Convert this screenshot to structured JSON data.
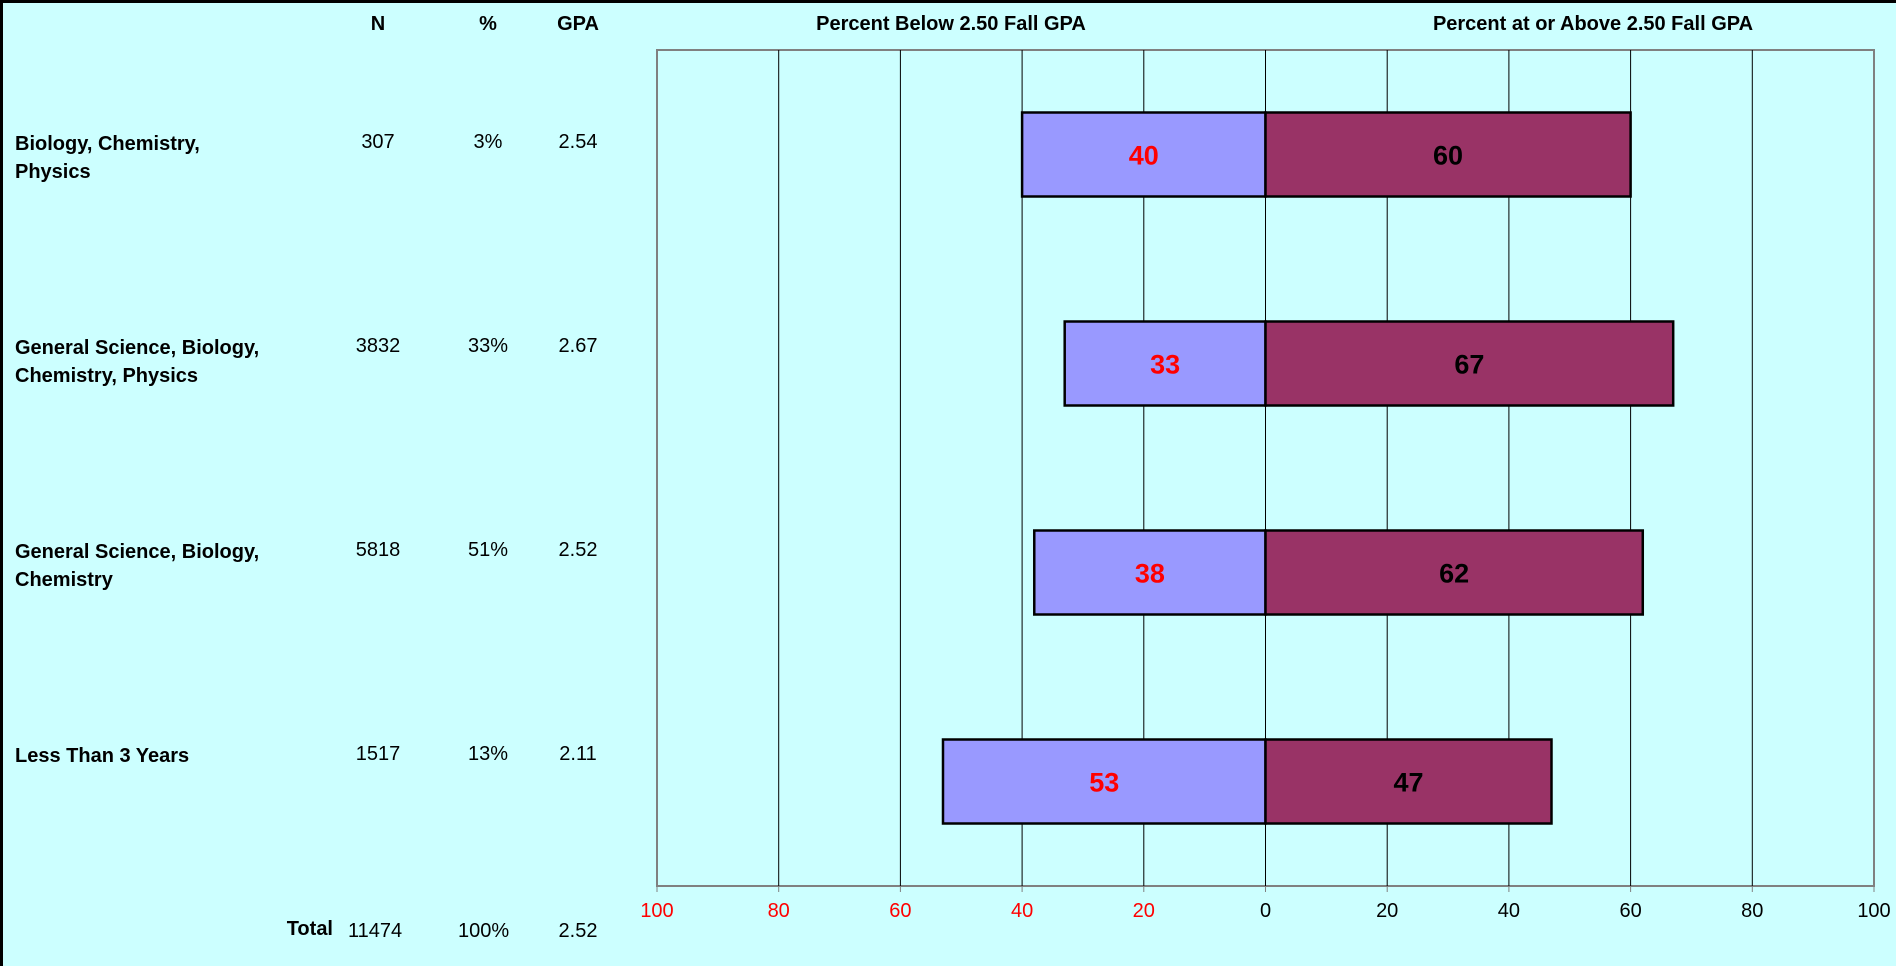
{
  "table": {
    "headers": {
      "n": "N",
      "pct": "%",
      "gpa": "GPA"
    },
    "rows": [
      {
        "label": "Biology, Chemistry,\nPhysics",
        "n": "307",
        "pct": "3%",
        "gpa": "2.54"
      },
      {
        "label": "General Science, Biology,\nChemistry, Physics",
        "n": "3832",
        "pct": "33%",
        "gpa": "2.67"
      },
      {
        "label": "General Science, Biology,\nChemistry",
        "n": "5818",
        "pct": "51%",
        "gpa": "2.52"
      },
      {
        "label": "Less Than 3 Years",
        "n": "1517",
        "pct": "13%",
        "gpa": "2.11"
      }
    ],
    "total": {
      "label": "Total",
      "n": "11474",
      "pct": "100%",
      "gpa": "2.52"
    }
  },
  "chart_data": {
    "type": "bar",
    "orientation": "horizontal-diverging",
    "left_title": "Percent Below 2.50 Fall GPA",
    "right_title": "Percent at or Above 2.50 Fall GPA",
    "categories": [
      "Biology, Chemistry, Physics",
      "General Science, Biology, Chemistry, Physics",
      "General Science, Biology, Chemistry",
      "Less Than 3 Years"
    ],
    "series": [
      {
        "name": "Percent Below 2.50 Fall GPA",
        "values": [
          40,
          33,
          38,
          53
        ],
        "color": "#9999ff",
        "label_color": "#ff0000"
      },
      {
        "name": "Percent at or Above 2.50 Fall GPA",
        "values": [
          60,
          67,
          62,
          47
        ],
        "color": "#993366",
        "label_color": "#000000"
      }
    ],
    "xlim": [
      -100,
      100
    ],
    "x_ticks": [
      {
        "label": "100",
        "side": "left"
      },
      {
        "label": "80",
        "side": "left"
      },
      {
        "label": "60",
        "side": "left"
      },
      {
        "label": "40",
        "side": "left"
      },
      {
        "label": "20",
        "side": "left"
      },
      {
        "label": "0",
        "side": "center"
      },
      {
        "label": "20",
        "side": "right"
      },
      {
        "label": "40",
        "side": "right"
      },
      {
        "label": "60",
        "side": "right"
      },
      {
        "label": "80",
        "side": "right"
      },
      {
        "label": "100",
        "side": "right"
      }
    ],
    "left_tick_color": "#ff0000",
    "right_tick_color": "#000000",
    "grid": true,
    "background": "#ccffff",
    "gridline_color": "#000000"
  }
}
